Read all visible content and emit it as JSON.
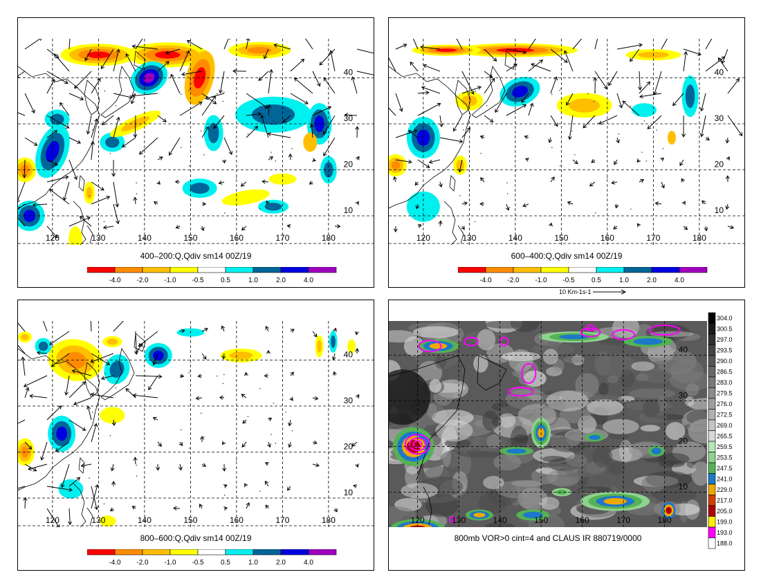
{
  "panels": [
    {
      "id": "p1",
      "caption": "400–200:Q,Qdiv sm14 00Z/19"
    },
    {
      "id": "p2",
      "caption": "600–400:Q,Qdiv sm14 00Z/19"
    },
    {
      "id": "p3",
      "caption": "800–600:Q,Qdiv sm14 00Z/19"
    },
    {
      "id": "p4",
      "caption": "800mb VOR>0 cint=4 and CLAUS IR 880719/0000"
    }
  ],
  "lon_labels": [
    "120",
    "130",
    "140",
    "150",
    "160",
    "170",
    "180"
  ],
  "lat_labels": [
    "10",
    "20",
    "30",
    "40"
  ],
  "qdiv_scale": {
    "labels": [
      "-4.0",
      "-2.0",
      "-1.0",
      "-0.5",
      "0.5",
      "1.0",
      "2.0",
      "4.0"
    ],
    "colors": [
      "#ff0000",
      "#ff8c00",
      "#ffbf00",
      "#ffff00",
      "#ffffff",
      "#00f0f0",
      "#006699",
      "#0000e0",
      "#a000c0"
    ]
  },
  "vector_scale": "10 Km-1s-1",
  "ir_scale": {
    "labels": [
      "304.0",
      "300.5",
      "297.0",
      "293.5",
      "290.0",
      "286.5",
      "283.0",
      "279.5",
      "276.0",
      "272.5",
      "269.0",
      "265.5",
      "259.5",
      "253.5",
      "247.5",
      "241.0",
      "229.0",
      "217.0",
      "205.0",
      "199.0",
      "193.0",
      "188.0"
    ],
    "colors": [
      "#000000",
      "#1a1a1a",
      "#303030",
      "#444444",
      "#565656",
      "#686868",
      "#7a7a7a",
      "#8c8c8c",
      "#9e9e9e",
      "#b0b0b0",
      "#c4c4c4",
      "#d8d8d8",
      "#b5e6b5",
      "#8fd18f",
      "#55b255",
      "#1e78c8",
      "#f0a800",
      "#d04000",
      "#b00000",
      "#ffee00",
      "#ff00ff",
      "#ffffff"
    ]
  },
  "colors": {
    "cyan": "#00f0f0",
    "darkblue": "#006699",
    "blue": "#0000e0",
    "purple": "#a000c0",
    "red": "#ff0000",
    "orange": "#ff8c00",
    "amber": "#ffbf00",
    "yellow": "#ffff00",
    "magenta": "#ff00ff"
  }
}
